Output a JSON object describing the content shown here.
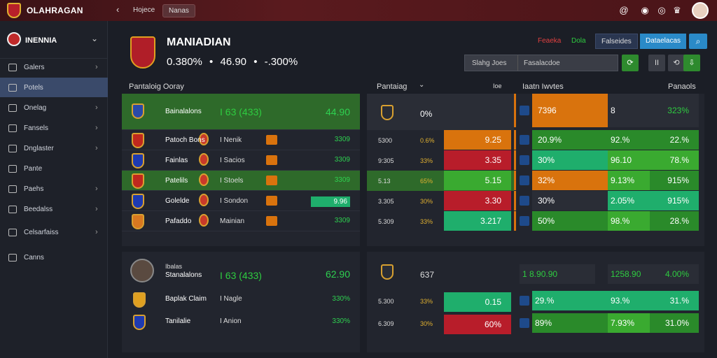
{
  "app": {
    "title": "OLAHRAGAN"
  },
  "top": {
    "tab1": "Hojece",
    "tab2": "Nanas"
  },
  "sidebar": {
    "title": "INENNIA",
    "items": [
      {
        "label": "Galers"
      },
      {
        "label": "Potels"
      },
      {
        "label": "Onelag"
      },
      {
        "label": "Fansels"
      },
      {
        "label": "Dnglaster"
      },
      {
        "label": "Pante"
      },
      {
        "label": "Paehs"
      },
      {
        "label": "Beedalss"
      },
      {
        "label": "Celsarfaiss"
      },
      {
        "label": "Canns"
      }
    ]
  },
  "team": {
    "name": "MANIADIAN",
    "stat1": "0.380%",
    "stat2": "46.90",
    "stat3": "-.300%"
  },
  "header_buttons": [
    "Feaeka",
    "Dola",
    "Falseides",
    "Dataelacas"
  ],
  "filter": {
    "label": "Slahg Joes",
    "value": "Fasalacdoe"
  },
  "sections": {
    "left_title": "Pantaloig Ooray",
    "mid_title": "Pantaiag",
    "mid_col": "Ioe",
    "right_title": "Iaatn Iwvtes",
    "right_col": "Panaols"
  },
  "left_rows": [
    {
      "name": "Bainalalons",
      "mid": "I 63 (433)",
      "val": "44.90"
    },
    {
      "name": "Patoch Bons",
      "mid": "I Nenik",
      "val": "3309"
    },
    {
      "name": "Fainlas",
      "mid": "I Sacios",
      "val": "3309"
    },
    {
      "name": "Patelils",
      "mid": "I Stoels",
      "val": "3309"
    },
    {
      "name": "Golelde",
      "mid": "I Sondon",
      "val": "9.96"
    },
    {
      "name": "Pafaddo",
      "mid": "Mainian",
      "val": "3309"
    }
  ],
  "left_rows2": [
    {
      "name": "Stanalalons",
      "mid": "I 63 (433)",
      "val": "62.90"
    },
    {
      "name": "Baplak Claim",
      "mid": "I Nagle",
      "val": "330%"
    },
    {
      "name": "Tanilalie",
      "mid": "I Anion",
      "val": "330%"
    }
  ],
  "player_line": "Ibalas",
  "mid_rows": [
    {
      "a": "5300",
      "b": "0.6%",
      "cell": "9.25"
    },
    {
      "a": "9:305",
      "b": "33%",
      "cell": "3.35"
    },
    {
      "a": "5.13",
      "b": "65%",
      "cell": "5.15"
    },
    {
      "a": "3.305",
      "b": "30%",
      "cell": "3.30"
    },
    {
      "a": "5.309",
      "b": "33%",
      "cell": "3.217"
    }
  ],
  "mid_rows2": [
    {
      "a": "637",
      "b": "",
      "cell": ""
    },
    {
      "a": "5.300",
      "b": "33%",
      "cell": "0.15"
    },
    {
      "a": "6.309",
      "b": "30%",
      "cell": "60%"
    }
  ],
  "right_rows": [
    {
      "c1": "7396",
      "c2": "8",
      "c3": "323%"
    },
    {
      "c1": "20.9%",
      "c2": "92.%",
      "c3": "22.%"
    },
    {
      "c1": "30%",
      "c2": "96.10",
      "c3": "78.%"
    },
    {
      "c1": "32%",
      "c2": "9.13%",
      "c3": "915%"
    },
    {
      "c1": "30%",
      "c2": "2.05%",
      "c3": "915%"
    },
    {
      "c1": "50%",
      "c2": "98.%",
      "c3": "28.%"
    }
  ],
  "right_rows2": [
    {
      "c1": "1 8.90.90",
      "c2": "1258.90",
      "c3": "4.00%"
    },
    {
      "c1": "29.%",
      "c2": "93.%",
      "c3": "31.%"
    },
    {
      "c1": "89%",
      "c2": "7.93%",
      "c3": "31.0%"
    }
  ],
  "colors": {
    "green": "#2ecc40",
    "orange": "#d9730d",
    "red": "#b81d2a",
    "teal": "#1fae6c",
    "accent": "#2a8ac8"
  }
}
